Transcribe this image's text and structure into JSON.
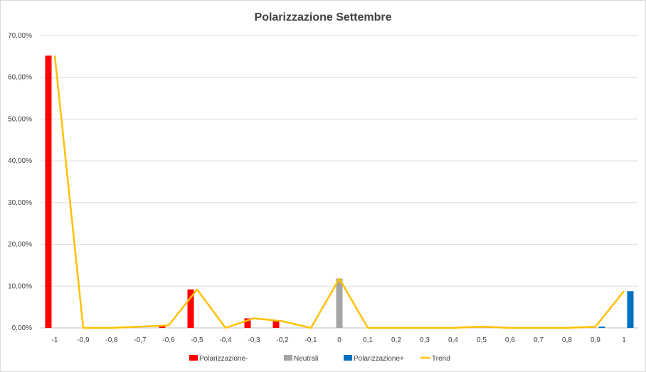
{
  "chart_data": {
    "type": "bar",
    "title": "Polarizzazione Settembre",
    "categories": [
      "-1",
      "-0,9",
      "-0,8",
      "-0,7",
      "-0,6",
      "-0,5",
      "-0,4",
      "-0,3",
      "-0,2",
      "-0,1",
      "0",
      "0,1",
      "0,2",
      "0,3",
      "0,4",
      "0,5",
      "0,6",
      "0,7",
      "0,8",
      "0,9",
      "1"
    ],
    "y_ticks": [
      "0,00%",
      "10,00%",
      "20,00%",
      "30,00%",
      "40,00%",
      "50,00%",
      "60,00%",
      "70,00%"
    ],
    "ylim": [
      0,
      70
    ],
    "grid": true,
    "legend_position": "bottom",
    "series": [
      {
        "name": "Polarizzazione-",
        "kind": "bar",
        "color": "#ff0000",
        "values": [
          65.2,
          0,
          0,
          0,
          0.6,
          9.2,
          0,
          2.3,
          1.6,
          0,
          0,
          0,
          0,
          0,
          0,
          0,
          0,
          0,
          0,
          0,
          0
        ]
      },
      {
        "name": "Neutrali",
        "kind": "bar",
        "color": "#a5a5a5",
        "values": [
          0,
          0,
          0,
          0,
          0,
          0,
          0,
          0,
          0,
          0,
          11.8,
          0,
          0,
          0,
          0,
          0,
          0,
          0,
          0,
          0,
          0
        ]
      },
      {
        "name": "Polarizzazione+",
        "kind": "bar",
        "color": "#0070c0",
        "values": [
          0,
          0,
          0,
          0,
          0,
          0,
          0,
          0,
          0,
          0,
          0,
          0,
          0,
          0,
          0,
          0,
          0,
          0,
          0,
          0.3,
          8.8
        ]
      },
      {
        "name": "Trend",
        "kind": "line",
        "color": "#ffc000",
        "values": [
          65.2,
          0,
          0,
          0.3,
          0.6,
          9.2,
          0,
          2.3,
          1.6,
          0,
          11.8,
          0,
          0,
          0,
          0,
          0.3,
          0,
          0,
          0,
          0.3,
          8.8
        ]
      }
    ]
  }
}
